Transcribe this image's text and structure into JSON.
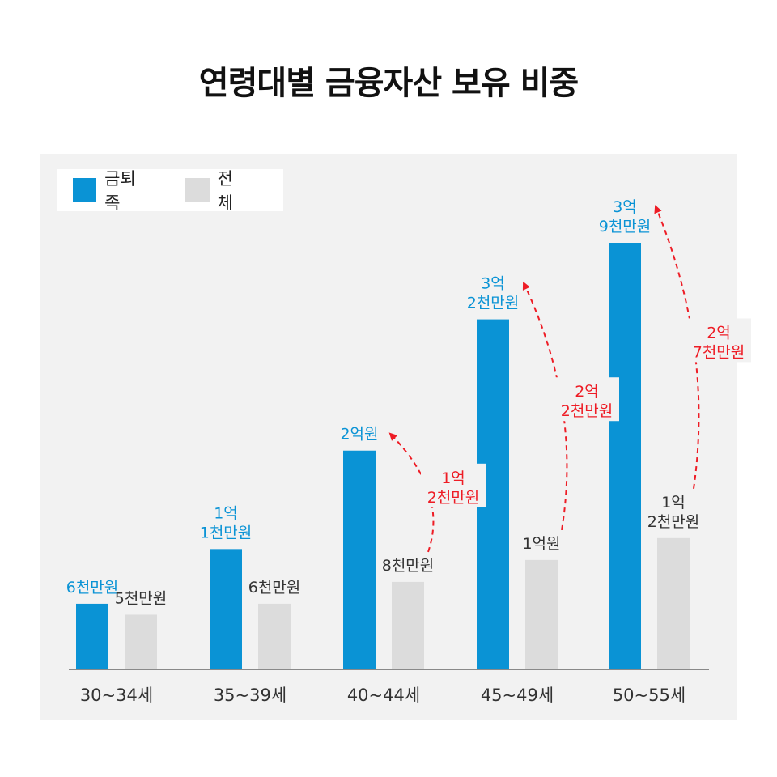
{
  "title": "연령대별 금융자산 보유 비중",
  "colors": {
    "primary": "#0a93d5",
    "secondary": "#dcdcdc",
    "gap": "#ee1c25",
    "panel": "#f2f2f2"
  },
  "chart_data": {
    "type": "bar",
    "categories": [
      "30~34세",
      "35~39세",
      "40~44세",
      "45~49세",
      "50~55세"
    ],
    "unit": "만원",
    "series": [
      {
        "name": "금퇴족",
        "values": [
          6000,
          11000,
          20000,
          32000,
          39000
        ],
        "labels": [
          [
            "6천만원"
          ],
          [
            "1억",
            "1천만원"
          ],
          [
            "2억원"
          ],
          [
            "3억",
            "2천만원"
          ],
          [
            "3억",
            "9천만원"
          ]
        ]
      },
      {
        "name": "전체",
        "values": [
          5000,
          6000,
          8000,
          10000,
          12000
        ],
        "labels": [
          [
            "5천만원"
          ],
          [
            "6천만원"
          ],
          [
            "8천만원"
          ],
          [
            "1억원"
          ],
          [
            "1억",
            "2천만원"
          ]
        ]
      }
    ],
    "differences": [
      {
        "category": "40~44세",
        "value": 12000,
        "label": [
          "1억",
          "2천만원"
        ]
      },
      {
        "category": "45~49세",
        "value": 22000,
        "label": [
          "2억",
          "2천만원"
        ]
      },
      {
        "category": "50~55세",
        "value": 27000,
        "label": [
          "2억",
          "7천만원"
        ]
      }
    ],
    "legend_position": "top-left",
    "grid": false
  }
}
